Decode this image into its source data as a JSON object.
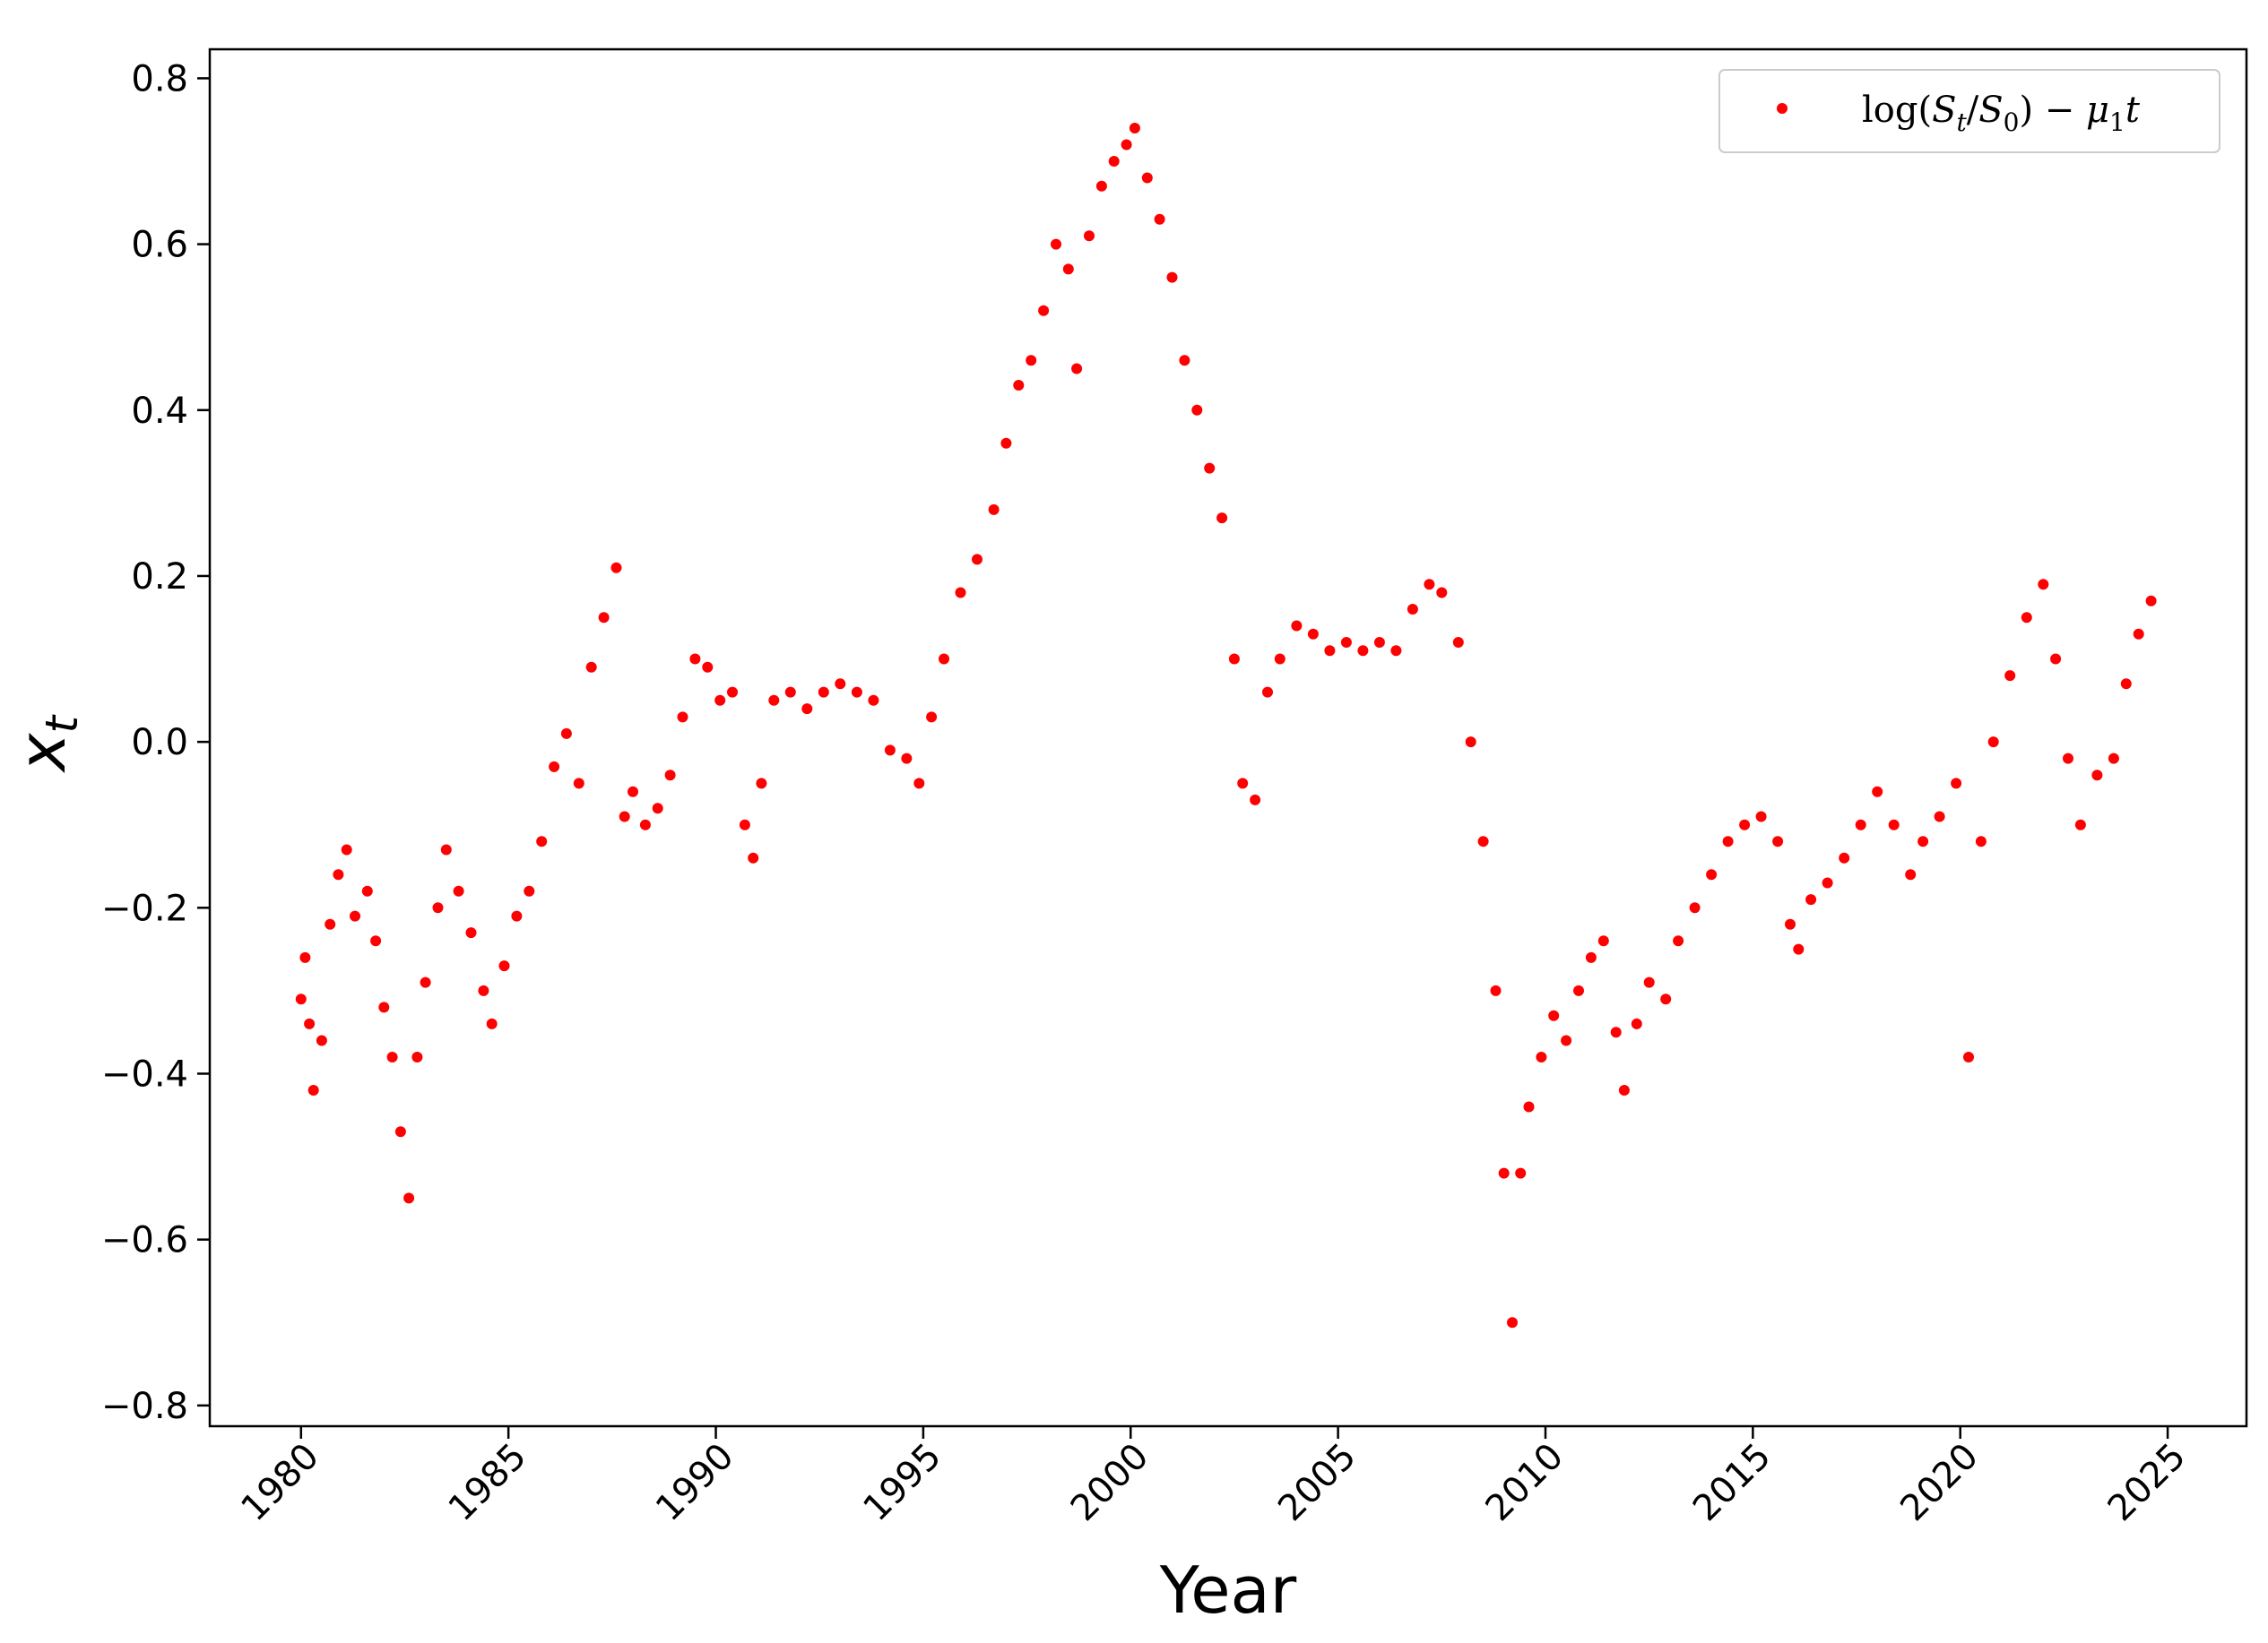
{
  "chart_data": {
    "type": "scatter",
    "xlabel": "Year",
    "ylabel": "x",
    "ylabel_subscript": "t",
    "xlim": [
      1977.8,
      2026.9
    ],
    "ylim": [
      -0.825,
      0.835
    ],
    "grid": false,
    "legend_position": "top-right",
    "marker_color": "#ff0000",
    "x_ticks": [
      {
        "value": 1980,
        "label": "1980"
      },
      {
        "value": 1985,
        "label": "1985"
      },
      {
        "value": 1990,
        "label": "1990"
      },
      {
        "value": 1995,
        "label": "1995"
      },
      {
        "value": 2000,
        "label": "2000"
      },
      {
        "value": 2005,
        "label": "2005"
      },
      {
        "value": 2010,
        "label": "2010"
      },
      {
        "value": 2015,
        "label": "2015"
      },
      {
        "value": 2020,
        "label": "2020"
      },
      {
        "value": 2025,
        "label": "2025"
      }
    ],
    "y_ticks": [
      {
        "value": 0.8,
        "label": "0.8"
      },
      {
        "value": 0.6,
        "label": "0.6"
      },
      {
        "value": 0.4,
        "label": "0.4"
      },
      {
        "value": 0.2,
        "label": "0.2"
      },
      {
        "value": 0.0,
        "label": "0.0"
      },
      {
        "value": -0.2,
        "label": "−0.2"
      },
      {
        "value": -0.4,
        "label": "−0.4"
      },
      {
        "value": -0.6,
        "label": "−0.6"
      },
      {
        "value": -0.8,
        "label": "−0.8"
      }
    ],
    "series": [
      {
        "name": "log(St/S0) − μ1t",
        "name_parts": {
          "log": "log(",
          "S": "S",
          "t": "t",
          "slash": "/",
          "S0": "S",
          "zero": "0",
          "close": ") − ",
          "mu": "μ",
          "one": "1",
          "tvar": "t"
        },
        "color": "#ff0000",
        "points": [
          [
            1980.0,
            -0.31
          ],
          [
            1980.1,
            -0.26
          ],
          [
            1980.2,
            -0.34
          ],
          [
            1980.3,
            -0.42
          ],
          [
            1980.5,
            -0.36
          ],
          [
            1980.7,
            -0.22
          ],
          [
            1980.9,
            -0.16
          ],
          [
            1981.1,
            -0.13
          ],
          [
            1981.3,
            -0.21
          ],
          [
            1981.6,
            -0.18
          ],
          [
            1981.8,
            -0.24
          ],
          [
            1982.0,
            -0.32
          ],
          [
            1982.2,
            -0.38
          ],
          [
            1982.4,
            -0.47
          ],
          [
            1982.6,
            -0.55
          ],
          [
            1982.8,
            -0.38
          ],
          [
            1983.0,
            -0.29
          ],
          [
            1983.3,
            -0.2
          ],
          [
            1983.5,
            -0.13
          ],
          [
            1983.8,
            -0.18
          ],
          [
            1984.1,
            -0.23
          ],
          [
            1984.4,
            -0.3
          ],
          [
            1984.6,
            -0.34
          ],
          [
            1984.9,
            -0.27
          ],
          [
            1985.2,
            -0.21
          ],
          [
            1985.5,
            -0.18
          ],
          [
            1985.8,
            -0.12
          ],
          [
            1986.1,
            -0.03
          ],
          [
            1986.4,
            0.01
          ],
          [
            1986.7,
            -0.05
          ],
          [
            1987.0,
            0.09
          ],
          [
            1987.3,
            0.15
          ],
          [
            1987.6,
            0.21
          ],
          [
            1987.8,
            -0.09
          ],
          [
            1988.0,
            -0.06
          ],
          [
            1988.3,
            -0.1
          ],
          [
            1988.6,
            -0.08
          ],
          [
            1988.9,
            -0.04
          ],
          [
            1989.2,
            0.03
          ],
          [
            1989.5,
            0.1
          ],
          [
            1989.8,
            0.09
          ],
          [
            1990.1,
            0.05
          ],
          [
            1990.4,
            0.06
          ],
          [
            1990.7,
            -0.1
          ],
          [
            1990.9,
            -0.14
          ],
          [
            1991.1,
            -0.05
          ],
          [
            1991.4,
            0.05
          ],
          [
            1991.8,
            0.06
          ],
          [
            1992.2,
            0.04
          ],
          [
            1992.6,
            0.06
          ],
          [
            1993.0,
            0.07
          ],
          [
            1993.4,
            0.06
          ],
          [
            1993.8,
            0.05
          ],
          [
            1994.2,
            -0.01
          ],
          [
            1994.6,
            -0.02
          ],
          [
            1994.9,
            -0.05
          ],
          [
            1995.2,
            0.03
          ],
          [
            1995.5,
            0.1
          ],
          [
            1995.9,
            0.18
          ],
          [
            1996.3,
            0.22
          ],
          [
            1996.7,
            0.28
          ],
          [
            1997.0,
            0.36
          ],
          [
            1997.3,
            0.43
          ],
          [
            1997.6,
            0.46
          ],
          [
            1997.9,
            0.52
          ],
          [
            1998.2,
            0.6
          ],
          [
            1998.5,
            0.57
          ],
          [
            1998.7,
            0.45
          ],
          [
            1999.0,
            0.61
          ],
          [
            1999.3,
            0.67
          ],
          [
            1999.6,
            0.7
          ],
          [
            1999.9,
            0.72
          ],
          [
            2000.1,
            0.74
          ],
          [
            2000.4,
            0.68
          ],
          [
            2000.7,
            0.63
          ],
          [
            2001.0,
            0.56
          ],
          [
            2001.3,
            0.46
          ],
          [
            2001.6,
            0.4
          ],
          [
            2001.9,
            0.33
          ],
          [
            2002.2,
            0.27
          ],
          [
            2002.5,
            0.1
          ],
          [
            2002.7,
            -0.05
          ],
          [
            2003.0,
            -0.07
          ],
          [
            2003.3,
            0.06
          ],
          [
            2003.6,
            0.1
          ],
          [
            2004.0,
            0.14
          ],
          [
            2004.4,
            0.13
          ],
          [
            2004.8,
            0.11
          ],
          [
            2005.2,
            0.12
          ],
          [
            2005.6,
            0.11
          ],
          [
            2006.0,
            0.12
          ],
          [
            2006.4,
            0.11
          ],
          [
            2006.8,
            0.16
          ],
          [
            2007.2,
            0.19
          ],
          [
            2007.5,
            0.18
          ],
          [
            2007.9,
            0.12
          ],
          [
            2008.2,
            0.0
          ],
          [
            2008.5,
            -0.12
          ],
          [
            2008.8,
            -0.3
          ],
          [
            2009.0,
            -0.52
          ],
          [
            2009.2,
            -0.7
          ],
          [
            2009.4,
            -0.52
          ],
          [
            2009.6,
            -0.44
          ],
          [
            2009.9,
            -0.38
          ],
          [
            2010.2,
            -0.33
          ],
          [
            2010.5,
            -0.36
          ],
          [
            2010.8,
            -0.3
          ],
          [
            2011.1,
            -0.26
          ],
          [
            2011.4,
            -0.24
          ],
          [
            2011.7,
            -0.35
          ],
          [
            2011.9,
            -0.42
          ],
          [
            2012.2,
            -0.34
          ],
          [
            2012.5,
            -0.29
          ],
          [
            2012.9,
            -0.31
          ],
          [
            2013.2,
            -0.24
          ],
          [
            2013.6,
            -0.2
          ],
          [
            2014.0,
            -0.16
          ],
          [
            2014.4,
            -0.12
          ],
          [
            2014.8,
            -0.1
          ],
          [
            2015.2,
            -0.09
          ],
          [
            2015.6,
            -0.12
          ],
          [
            2015.9,
            -0.22
          ],
          [
            2016.1,
            -0.25
          ],
          [
            2016.4,
            -0.19
          ],
          [
            2016.8,
            -0.17
          ],
          [
            2017.2,
            -0.14
          ],
          [
            2017.6,
            -0.1
          ],
          [
            2018.0,
            -0.06
          ],
          [
            2018.4,
            -0.1
          ],
          [
            2018.8,
            -0.16
          ],
          [
            2019.1,
            -0.12
          ],
          [
            2019.5,
            -0.09
          ],
          [
            2019.9,
            -0.05
          ],
          [
            2020.2,
            -0.38
          ],
          [
            2020.5,
            -0.12
          ],
          [
            2020.8,
            0.0
          ],
          [
            2021.2,
            0.08
          ],
          [
            2021.6,
            0.15
          ],
          [
            2022.0,
            0.19
          ],
          [
            2022.3,
            0.1
          ],
          [
            2022.6,
            -0.02
          ],
          [
            2022.9,
            -0.1
          ],
          [
            2023.3,
            -0.04
          ],
          [
            2023.7,
            -0.02
          ],
          [
            2024.0,
            0.07
          ],
          [
            2024.3,
            0.13
          ],
          [
            2024.6,
            0.17
          ]
        ]
      }
    ]
  }
}
